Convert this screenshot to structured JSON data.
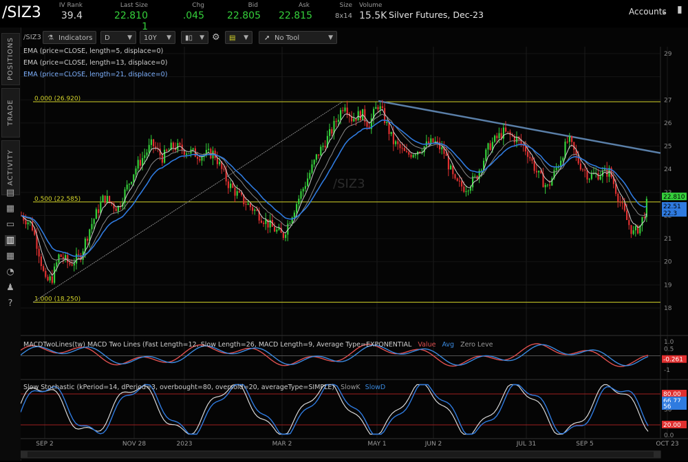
{
  "header": {
    "symbol": "/SIZ3",
    "cells": [
      {
        "label": "IV Rank",
        "value": "39.4"
      },
      {
        "label": "Last Size",
        "value": "22.810",
        "extra": "1"
      },
      {
        "label": "Chg",
        "value": ".045"
      },
      {
        "label": "Bid",
        "value": "22.805"
      },
      {
        "label": "Ask",
        "value": "22.815"
      },
      {
        "label": "Size",
        "value": "8x14"
      },
      {
        "label": "Volume",
        "value": "15.5K"
      }
    ],
    "description": "Silver Futures, Dec-23",
    "accounts_label": "Accounts"
  },
  "rail": {
    "tabs": [
      "POSITIONS",
      "TRADE",
      "ACTIVITY"
    ]
  },
  "toolbar": {
    "symbol": "/SIZ3",
    "indicators_label": "Indicators",
    "aggregation": "D",
    "timeframe": "10Y",
    "tool": "No Tool"
  },
  "studies": {
    "ema1": "EMA (price=CLOSE, length=5, displace=0)",
    "ema2": "EMA (price=CLOSE, length=13, displace=0)",
    "ema3": "EMA (price=CLOSE, length=21, displace=0)",
    "macd_label": "MACDTwoLines(tw)  MACD Two Lines (Fast Length=12, Slow Length=26, MACD Length=9, Average Type=EXPONENTIAL",
    "macd_value": "Value",
    "macd_avg": "Avg",
    "macd_zero": "Zero Leve",
    "stoch_label": "Slow Stochastic (kPeriod=14, dPeriod=3, overbought=80, oversold=20, averageType=SIMPLE)",
    "stoch_k": "SlowK",
    "stoch_d": "SlowD"
  },
  "watermark": "/SIZ3",
  "fib_labels": [
    "0.000 (26.920)",
    "0.500 (22.585)",
    "1.000 (18.250)"
  ],
  "price_axis": [
    "29",
    "27",
    "26",
    "25",
    "24",
    "23",
    "22",
    "21",
    "20",
    "19",
    "18"
  ],
  "price_tags": [
    "22.810",
    "22.51",
    "22.3"
  ],
  "macd_axis": [
    "1.0",
    "0.5",
    "-1"
  ],
  "macd_tag": "-0.261",
  "stoch_axis": [
    "50",
    "0.0"
  ],
  "stoch_tags": [
    "80.00",
    "66.77",
    "56",
    "20.00"
  ],
  "date_labels": [
    "SEP 2",
    "NOV 28",
    "2023",
    "MAR 2",
    "MAY 1",
    "JUN 2",
    "JUL 31",
    "SEP 5",
    "OCT 23"
  ],
  "colors": {
    "up": "#35d13b",
    "down": "#e03030",
    "fib": "#d6d62a",
    "ema1": "#cfcfcf",
    "ema2": "#8a8a8a",
    "ema3": "#2f7be0",
    "trend": "#5a7fa8",
    "macd_value": "#e05050",
    "macd_avg": "#3a8ae0",
    "stoch_k": "#d8d8d8",
    "stoch_d": "#2f7be0"
  }
}
